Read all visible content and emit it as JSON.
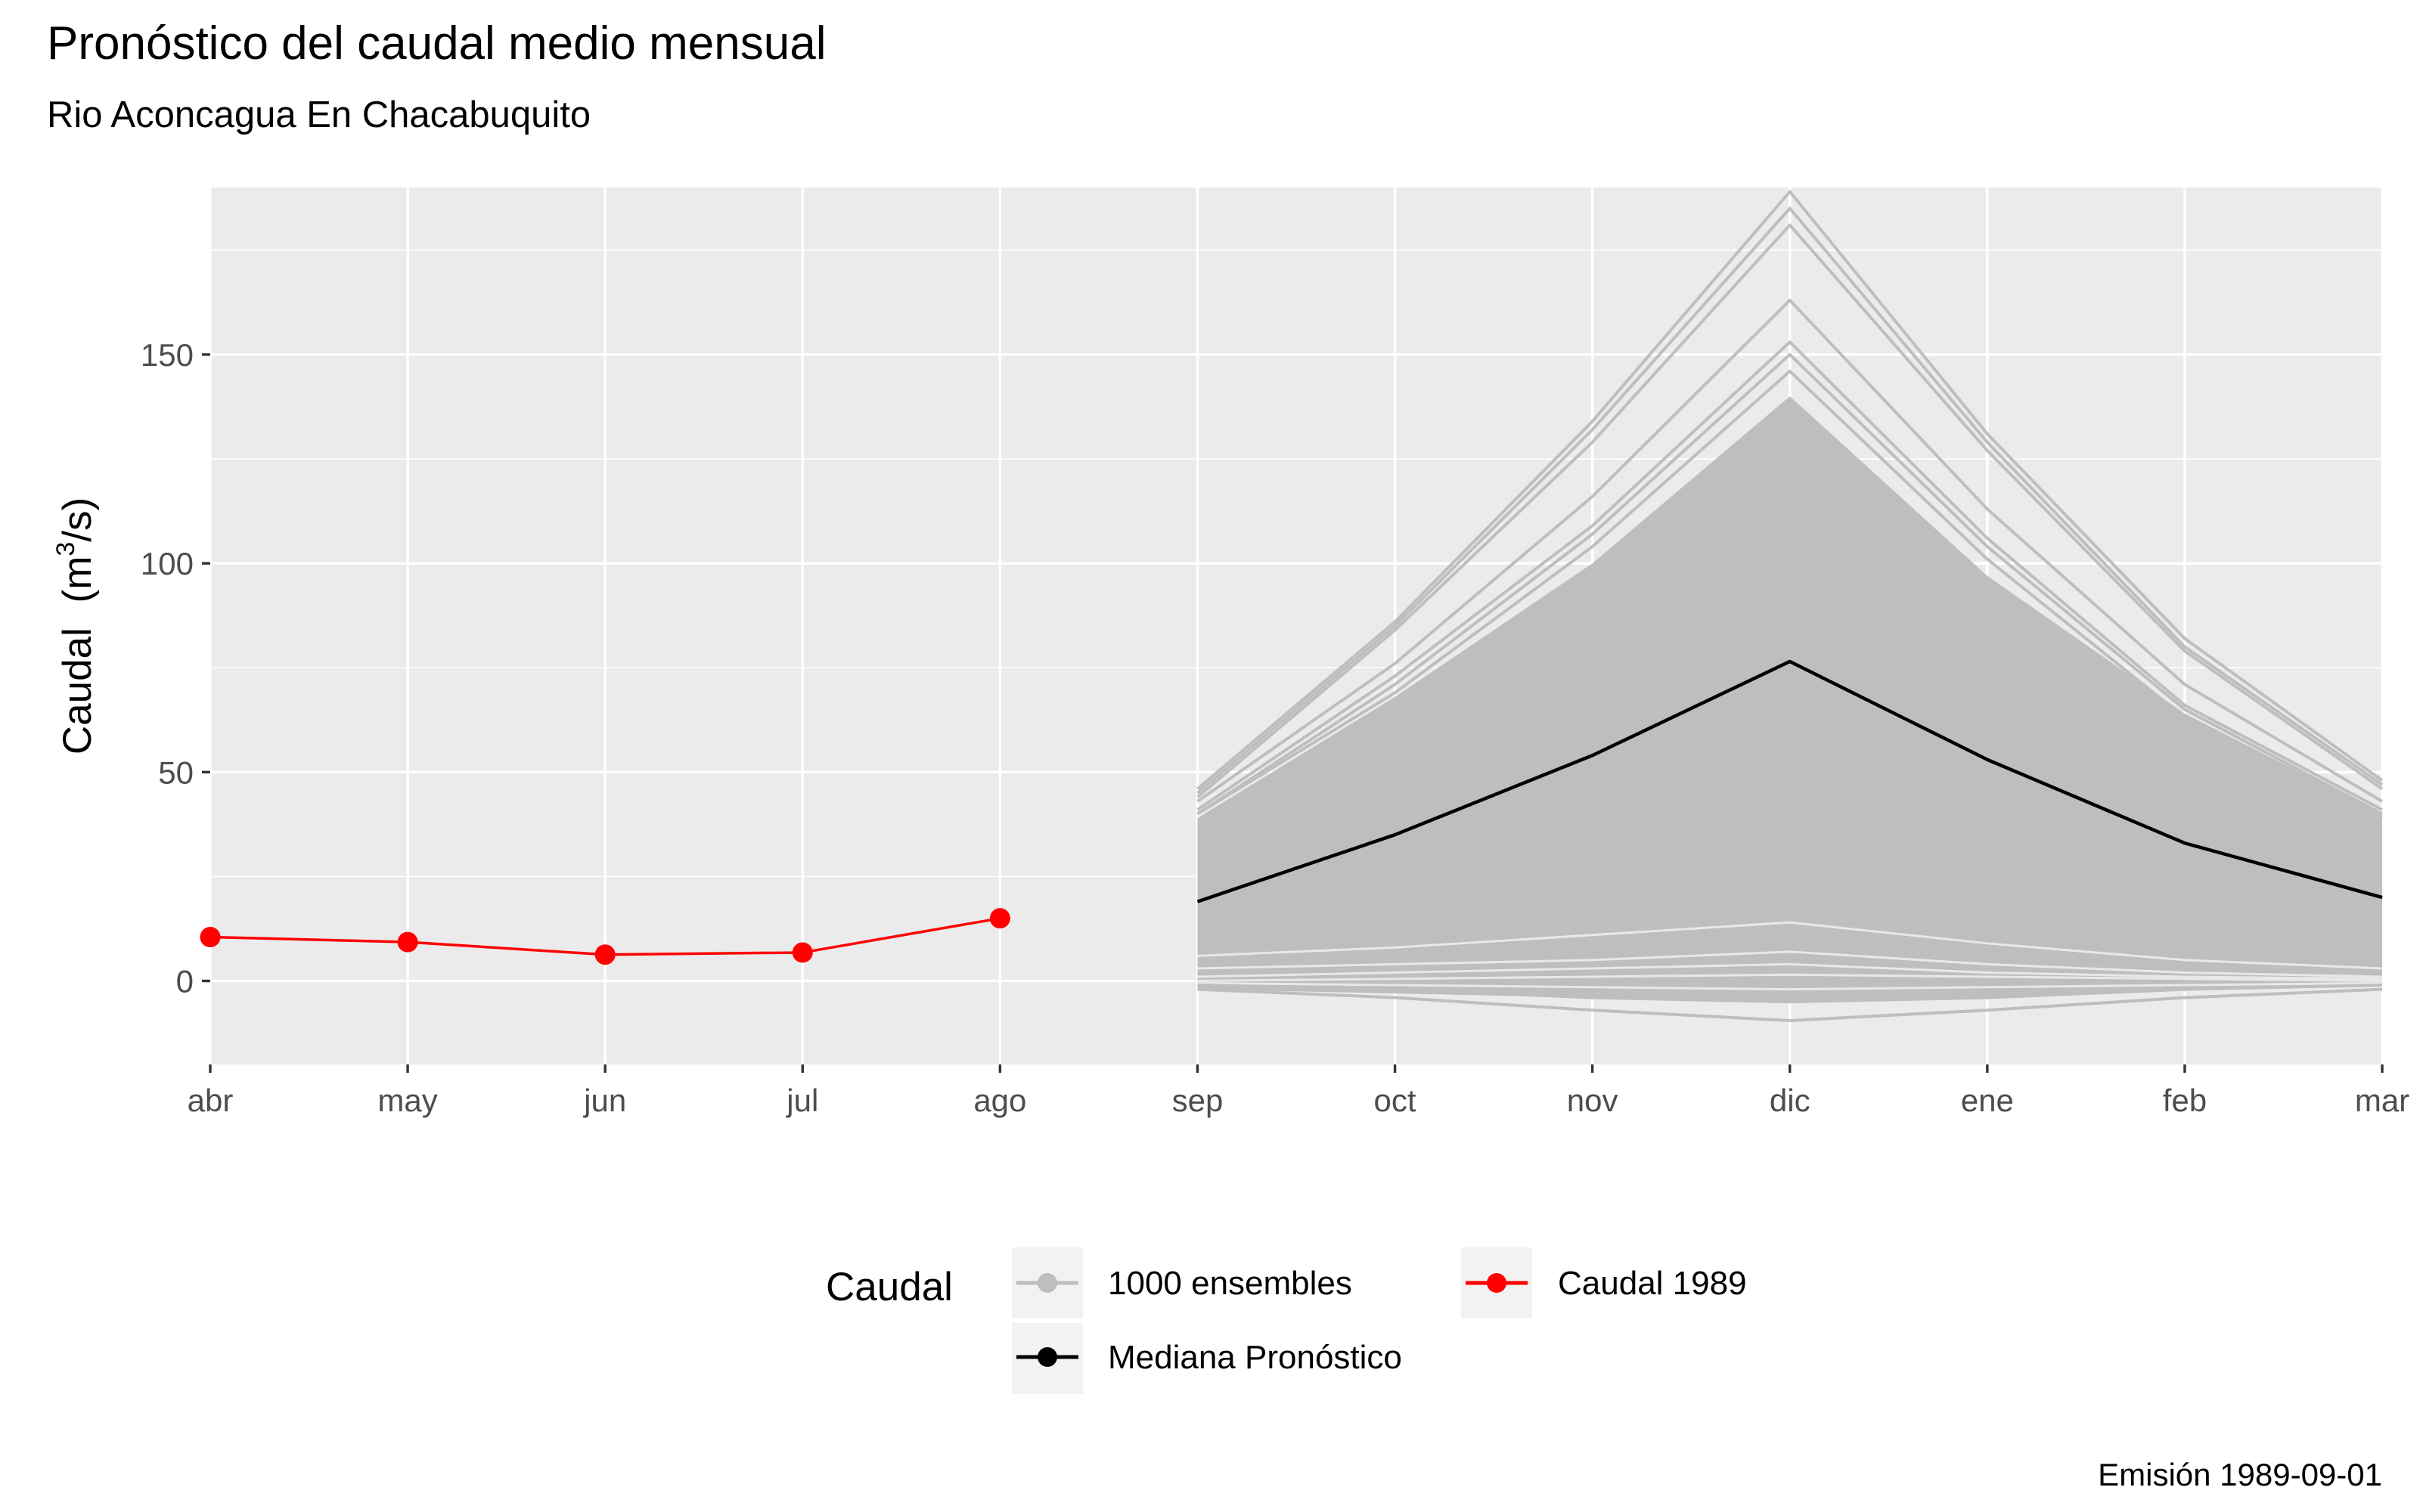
{
  "chart_data": {
    "type": "line",
    "title": "Pronóstico del caudal medio mensual",
    "subtitle": "Rio Aconcagua En Chacabuquito",
    "ylabel_text": "Caudal",
    "ylabel_unit": "(m",
    "ylabel_unit_sup": "3",
    "ylabel_unit_end": "/s)",
    "caption": "Emisión 1989-09-01",
    "categories": [
      "abr",
      "may",
      "jun",
      "jul",
      "ago",
      "sep",
      "oct",
      "nov",
      "dic",
      "ene",
      "feb",
      "mar"
    ],
    "ylim": [
      -20,
      190
    ],
    "yticks": [
      0,
      50,
      100,
      150
    ],
    "grid": true,
    "legend": {
      "title": "Caudal",
      "position": "bottom",
      "items": [
        {
          "label": "1000 ensembles",
          "color": "#bebebe"
        },
        {
          "label": "Caudal 1989",
          "color": "#ff0000"
        },
        {
          "label": "Mediana Pronóstico",
          "color": "#000000"
        }
      ]
    },
    "observed": {
      "name": "Caudal 1989",
      "color": "#ff0000",
      "categories": [
        "abr",
        "may",
        "jun",
        "jul",
        "ago"
      ],
      "values": [
        10.5,
        9.3,
        6.3,
        6.8,
        15.0
      ]
    },
    "median": {
      "name": "Mediana Pronóstico",
      "color": "#000000",
      "categories": [
        "sep",
        "oct",
        "nov",
        "dic",
        "ene",
        "feb",
        "mar"
      ],
      "values": [
        19,
        35,
        54,
        76.5,
        53,
        33,
        20
      ]
    },
    "ensemble_band": {
      "color": "#bebebe",
      "categories": [
        "sep",
        "oct",
        "nov",
        "dic",
        "ene",
        "feb",
        "mar"
      ],
      "upper": [
        39,
        68,
        100,
        140,
        97,
        64,
        40
      ],
      "lower": [
        -2,
        -3,
        -4,
        -5,
        -4,
        -2,
        -1
      ]
    },
    "ensemble_highlights": [
      [
        46,
        86,
        134,
        189,
        131,
        82,
        48
      ],
      [
        45,
        85,
        132,
        185,
        129,
        80,
        47
      ],
      [
        44,
        84,
        129,
        181,
        127,
        79,
        46
      ],
      [
        43,
        76,
        116,
        163,
        113,
        71,
        43
      ],
      [
        41,
        73,
        109,
        153,
        106,
        66,
        41
      ],
      [
        40,
        71,
        107,
        150,
        104,
        65,
        40
      ],
      [
        40,
        69,
        104,
        146,
        101,
        63,
        39
      ],
      [
        -2,
        -4,
        -7,
        -9.5,
        -7,
        -4,
        -2
      ],
      [
        -1,
        -2,
        -4,
        -5,
        -4,
        -2,
        -1
      ]
    ],
    "ensemble_white_lines": [
      [
        6,
        8,
        11,
        14,
        9,
        5,
        3
      ],
      [
        3,
        4,
        5,
        7,
        4,
        2,
        1
      ],
      [
        1,
        2,
        3,
        4,
        2,
        1,
        0.5
      ],
      [
        0,
        0.5,
        1,
        1.5,
        1,
        0.5,
        0
      ],
      [
        -0.5,
        -1,
        -1.5,
        -2,
        -1.5,
        -1,
        -0.5
      ]
    ]
  }
}
